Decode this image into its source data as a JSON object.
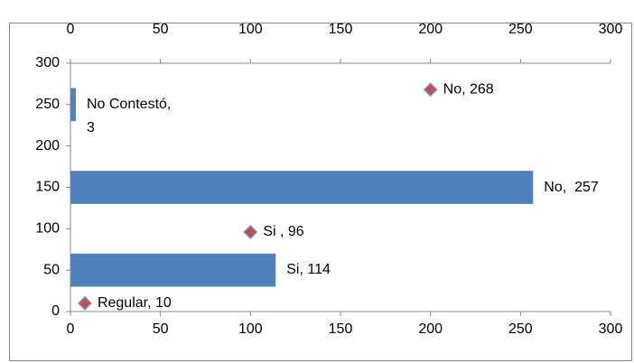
{
  "chart_data": [
    {
      "type": "bar",
      "orientation": "horizontal",
      "values": [
        114,
        257,
        3
      ],
      "value_labels": [
        "Si, 114",
        "No,  257",
        "No Contestó, 3"
      ],
      "color": "#4f81bd",
      "xlim": [
        0,
        300
      ],
      "xticks": [
        0,
        50,
        100,
        150,
        200,
        250,
        300
      ]
    },
    {
      "type": "scatter",
      "x": [
        8,
        100,
        200
      ],
      "y": [
        10,
        96,
        268
      ],
      "value_labels": [
        "Regular, 10",
        "Si , 96",
        "No, 268"
      ],
      "color": "#c0504d",
      "xlim": [
        0,
        300
      ],
      "xticks": [
        0,
        50,
        100,
        150,
        200,
        250,
        300
      ],
      "ylim": [
        0,
        300
      ],
      "yticks": [
        0,
        50,
        100,
        150,
        200,
        250,
        300
      ]
    }
  ]
}
